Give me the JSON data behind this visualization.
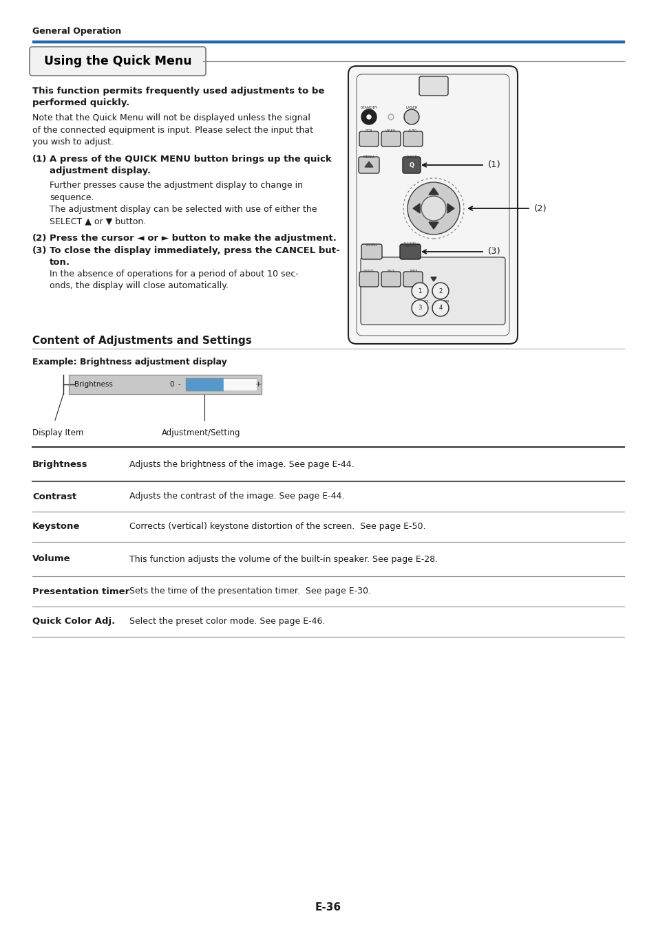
{
  "page_bg": "#ffffff",
  "header_text": "General Operation",
  "header_line_color": "#2166b0",
  "body_text_color": "#1a1a1a",
  "section1_title": "Using the Quick Menu",
  "bold_intro": "This function permits frequently used adjustments to be\nperformed quickly.",
  "normal_text1": "Note that the Quick Menu will not be displayed unless the signal\nof the connected equipment is input. Please select the input that\nyou wish to adjust.",
  "item1_bold": "(1)  A press of the QUICK MENU button brings up the quick\n       adjustment display.",
  "item1_normal": "      Further presses cause the adjustment display to change in\n      sequence.\n      The adjustment display can be selected with use of either the\n      SELECT ▲ or ▼ button.",
  "item2_bold": "(2)  Press the cursor ◄ or ► button to make the adjustment.",
  "item3_bold": "(3)  To close the display immediately, press the CANCEL but-\n       ton.",
  "item3_normal": "      In the absence of operations for a period of about 10 sec-\n      onds, the display will close automatically.",
  "section2_title": "Content of Adjustments and Settings",
  "example_label": "Example: Brightness adjustment display",
  "display_item_label": "Display Item",
  "adjustment_label": "Adjustment/Setting",
  "table_rows": [
    [
      "Brightness",
      "Adjusts the brightness of the image. See page E-44."
    ],
    [
      "Contrast",
      "Adjusts the contrast of the image. See page E-44."
    ],
    [
      "Keystone",
      "Corrects (vertical) keystone distortion of the screen.  See page E-50."
    ],
    [
      "Volume",
      "This function adjusts the volume of the built-in speaker. See page E-28."
    ],
    [
      "Presentation timer",
      "Sets the time of the presentation timer.  See page E-30."
    ],
    [
      "Quick Color Adj.",
      "Select the preset color mode. See page E-46."
    ]
  ],
  "footer_text": "E-36",
  "label1": "(1)",
  "label2": "(2)",
  "label3": "(3)",
  "rc_body_color": "#f0f0f0",
  "rc_border_color": "#333333",
  "rc_btn_dark": "#555555",
  "rc_btn_light": "#aaaaaa",
  "rc_btn_mid": "#777777"
}
